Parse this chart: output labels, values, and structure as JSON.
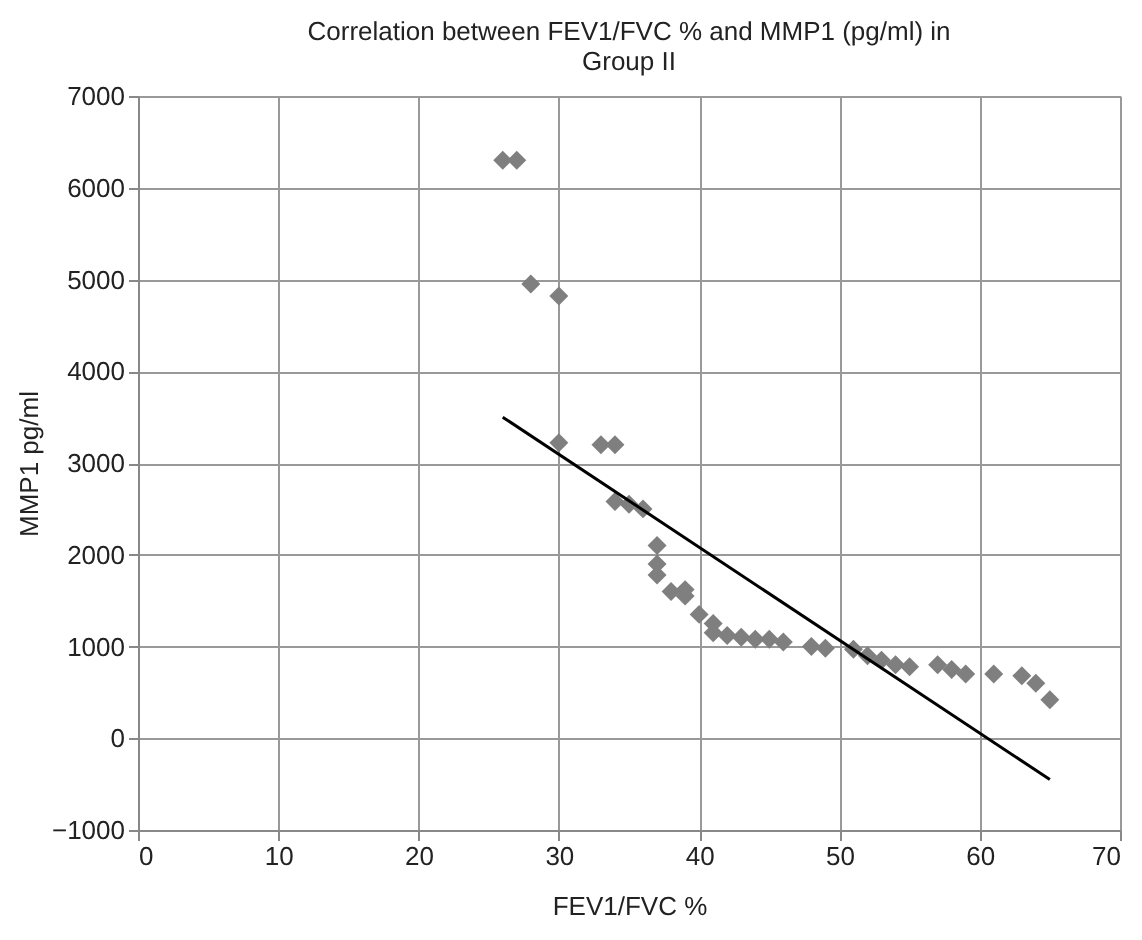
{
  "chart_data": {
    "type": "scatter",
    "title": [
      "Correlation between FEV1/FVC % and MMP1 (pg/ml) in",
      "Group II"
    ],
    "xlabel": "FEV1/FVC %",
    "ylabel": "MMP1 pg/ml",
    "xlim": [
      0,
      70
    ],
    "xticks": [
      0,
      10,
      20,
      30,
      40,
      50,
      60,
      70
    ],
    "ylim": [
      -1000,
      7000
    ],
    "yticks": [
      -1000,
      0,
      1000,
      2000,
      3000,
      4000,
      5000,
      6000,
      7000
    ],
    "grid": true,
    "marker": "diamond",
    "series": [
      {
        "color": "#7f7f7f",
        "x": [
          26,
          27,
          28,
          30,
          30,
          33,
          34,
          34,
          35,
          36,
          37,
          37,
          37,
          38,
          39,
          39,
          40,
          41,
          41,
          42,
          43,
          44,
          45,
          46,
          48,
          49,
          51,
          52,
          53,
          54,
          55,
          57,
          58,
          59,
          61,
          63,
          64,
          65
        ],
        "values": [
          6300,
          6300,
          4950,
          4820,
          3220,
          3200,
          3200,
          2580,
          2550,
          2500,
          2100,
          1900,
          1780,
          1600,
          1550,
          1620,
          1350,
          1250,
          1150,
          1120,
          1100,
          1080,
          1080,
          1050,
          1000,
          980,
          970,
          900,
          850,
          800,
          780,
          800,
          750,
          700,
          700,
          680,
          600,
          420
        ]
      },
      {
        "type": "line",
        "marker": "none",
        "line_style": "solid",
        "color": "#000000",
        "x": [
          26,
          65
        ],
        "values": [
          3500,
          -450
        ]
      }
    ]
  }
}
